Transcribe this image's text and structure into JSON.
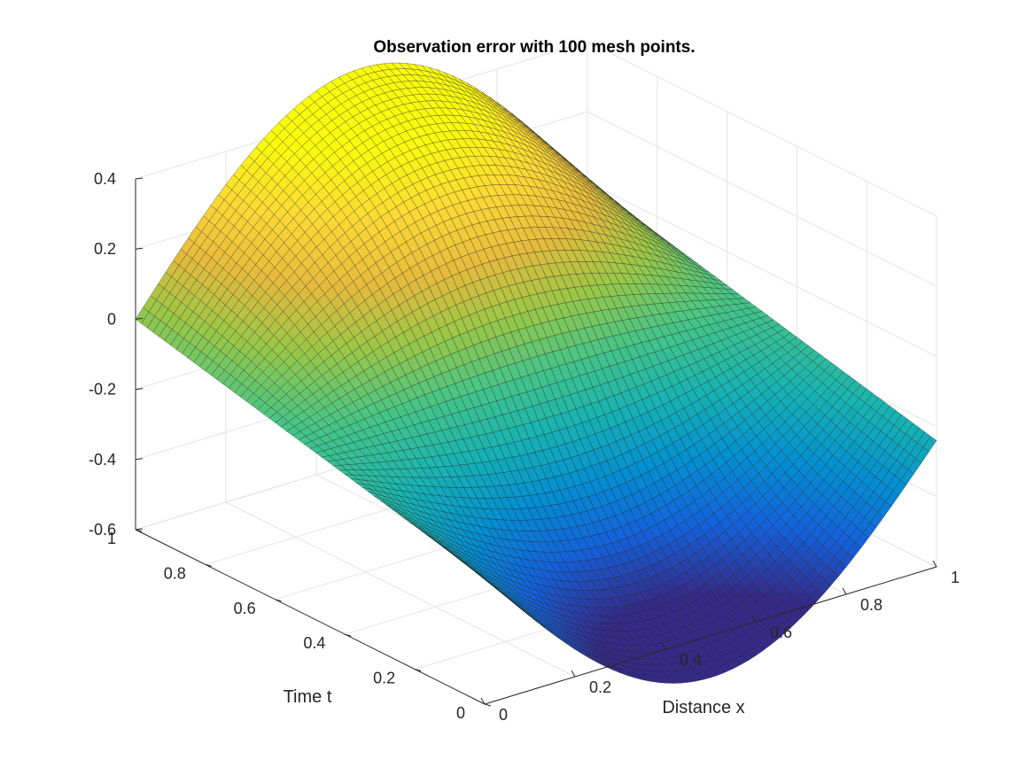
{
  "chart_data": {
    "type": "surface",
    "title": "Observation error with 100 mesh points.",
    "xlabel": "Distance x",
    "ylabel": "Time t",
    "zlabel": "",
    "xlim": [
      0,
      1
    ],
    "ylim": [
      0,
      1
    ],
    "zlim": [
      -0.6,
      0.4
    ],
    "x_ticks": [
      "0",
      "0.2",
      "0.4",
      "0.6",
      "0.8",
      "1"
    ],
    "y_ticks": [
      "0",
      "0.2",
      "0.4",
      "0.6",
      "0.8",
      "1"
    ],
    "z_ticks": [
      "-0.6",
      "-0.4",
      "-0.2",
      "0",
      "0.2",
      "0.4"
    ],
    "grid": true,
    "colormap": "parula",
    "mesh_points": 100,
    "surface_samples": {
      "description_units": "z at (x, t)",
      "points": [
        {
          "x": 0,
          "t": 0,
          "z": -0.24
        },
        {
          "x": 0,
          "t": 0.5,
          "z": -0.12
        },
        {
          "x": 0,
          "t": 1,
          "z": 0.0
        },
        {
          "x": 0.5,
          "t": 0,
          "z": -0.6
        },
        {
          "x": 0.5,
          "t": 0.5,
          "z": -0.1
        },
        {
          "x": 0.5,
          "t": 1,
          "z": 0.4
        },
        {
          "x": 1,
          "t": 0,
          "z": -0.24
        },
        {
          "x": 1,
          "t": 0.5,
          "z": -0.12
        },
        {
          "x": 1,
          "t": 1,
          "z": 0.0
        }
      ]
    }
  }
}
